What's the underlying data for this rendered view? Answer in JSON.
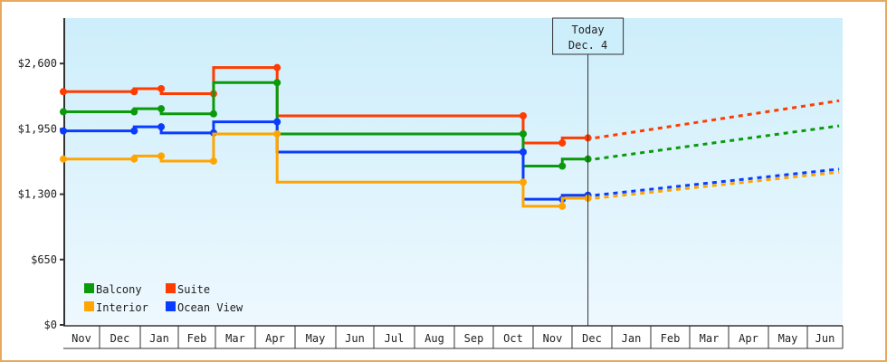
{
  "chart_data": {
    "type": "line",
    "title": "",
    "xlabel": "",
    "ylabel": "",
    "ylim": [
      0,
      2860
    ],
    "y_ticks": [
      "$0",
      "$650",
      "$1,300",
      "$1,950",
      "$2,600"
    ],
    "y_tick_values": [
      0,
      650,
      1300,
      1950,
      2600
    ],
    "x_months": [
      "Nov",
      "Dec",
      "Jan",
      "Feb",
      "Mar",
      "Apr",
      "May",
      "Jun",
      "Jul",
      "Aug",
      "Sep",
      "Oct",
      "Nov",
      "Dec",
      "Jan",
      "Feb",
      "Mar",
      "Apr",
      "May",
      "Jun"
    ],
    "today_marker": {
      "line1": "Today",
      "line2": "Dec. 4"
    },
    "legend": [
      {
        "name": "Balcony",
        "color": "#0a9a0a"
      },
      {
        "name": "Suite",
        "color": "#ff3c00"
      },
      {
        "name": "Interior",
        "color": "#ffa500"
      },
      {
        "name": "Ocean View",
        "color": "#0a3cff"
      }
    ],
    "series": [
      {
        "name": "Suite",
        "color": "#ff3c00",
        "history": [
          [
            0,
            2320
          ],
          [
            1.85,
            2320
          ],
          [
            1.85,
            2350
          ],
          [
            2.55,
            2350
          ],
          [
            2.55,
            2300
          ],
          [
            3.95,
            2300
          ],
          [
            3.95,
            2560
          ],
          [
            5.55,
            2560
          ],
          [
            5.55,
            2080
          ],
          [
            11.75,
            2080
          ],
          [
            11.75,
            1810
          ],
          [
            12.75,
            1810
          ],
          [
            12.75,
            1860
          ],
          [
            13.4,
            1860
          ]
        ],
        "forecast": [
          [
            13.4,
            1860
          ],
          [
            19.9,
            2230
          ]
        ]
      },
      {
        "name": "Balcony",
        "color": "#0a9a0a",
        "history": [
          [
            0,
            2120
          ],
          [
            1.85,
            2120
          ],
          [
            1.85,
            2150
          ],
          [
            2.55,
            2150
          ],
          [
            2.55,
            2100
          ],
          [
            3.95,
            2100
          ],
          [
            3.95,
            2410
          ],
          [
            5.55,
            2410
          ],
          [
            5.55,
            1900
          ],
          [
            11.75,
            1900
          ],
          [
            11.75,
            1580
          ],
          [
            12.75,
            1580
          ],
          [
            12.75,
            1650
          ],
          [
            13.4,
            1650
          ]
        ],
        "forecast": [
          [
            13.4,
            1650
          ],
          [
            19.9,
            1980
          ]
        ]
      },
      {
        "name": "Ocean View",
        "color": "#0a3cff",
        "history": [
          [
            0,
            1930
          ],
          [
            1.85,
            1930
          ],
          [
            1.85,
            1970
          ],
          [
            2.55,
            1970
          ],
          [
            2.55,
            1910
          ],
          [
            3.95,
            1910
          ],
          [
            3.95,
            2020
          ],
          [
            5.55,
            2020
          ],
          [
            5.55,
            1720
          ],
          [
            11.75,
            1720
          ],
          [
            11.75,
            1250
          ],
          [
            12.75,
            1250
          ],
          [
            12.75,
            1290
          ],
          [
            13.4,
            1290
          ]
        ],
        "forecast": [
          [
            13.4,
            1290
          ],
          [
            19.9,
            1550
          ]
        ]
      },
      {
        "name": "Interior",
        "color": "#ffa500",
        "history": [
          [
            0,
            1650
          ],
          [
            1.85,
            1650
          ],
          [
            1.85,
            1680
          ],
          [
            2.55,
            1680
          ],
          [
            2.55,
            1630
          ],
          [
            3.95,
            1630
          ],
          [
            3.95,
            1900
          ],
          [
            5.55,
            1900
          ],
          [
            5.55,
            1420
          ],
          [
            11.75,
            1420
          ],
          [
            11.75,
            1180
          ],
          [
            12.75,
            1180
          ],
          [
            12.75,
            1260
          ],
          [
            13.4,
            1260
          ]
        ],
        "forecast": [
          [
            13.4,
            1260
          ],
          [
            19.9,
            1520
          ]
        ]
      }
    ]
  }
}
